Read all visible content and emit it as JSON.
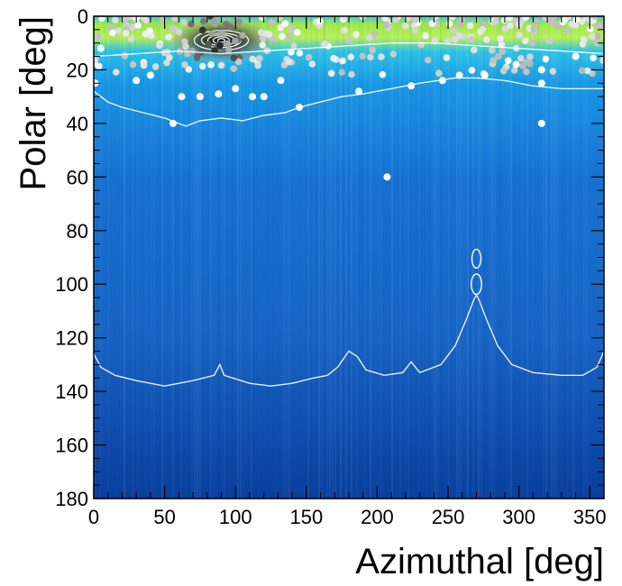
{
  "chart_data": {
    "type": "heatmap",
    "title": "",
    "xlabel": "Azimuthal [deg]",
    "ylabel": "Polar [deg]",
    "xlim": [
      0,
      360
    ],
    "ylim": [
      0,
      180
    ],
    "y_inverted": true,
    "x_ticks": [
      0,
      50,
      100,
      150,
      200,
      250,
      300,
      350
    ],
    "x_tick_labels": [
      "0",
      "50",
      "100",
      "150",
      "200",
      "250",
      "300",
      "350"
    ],
    "y_ticks": [
      0,
      20,
      40,
      60,
      80,
      100,
      120,
      140,
      160,
      180
    ],
    "y_tick_labels": [
      "0",
      "20",
      "40",
      "60",
      "80",
      "100",
      "120",
      "140",
      "160",
      "180"
    ],
    "grid": false,
    "legend": "none",
    "colormap": [
      {
        "polar": 0,
        "color": "#49c6d8"
      },
      {
        "polar": 3,
        "color": "#9fe84a"
      },
      {
        "polar": 8,
        "color": "#b8f05a"
      },
      {
        "polar": 13,
        "color": "#2fc4e6"
      },
      {
        "polar": 25,
        "color": "#1a98e6"
      },
      {
        "polar": 60,
        "color": "#1872d2"
      },
      {
        "polar": 120,
        "color": "#1764c4"
      },
      {
        "polar": 180,
        "color": "#0a3f9e"
      }
    ],
    "contour_color": "#ffffff",
    "contour_lines": [
      {
        "name": "upper",
        "points": [
          [
            0,
            15
          ],
          [
            30,
            14
          ],
          [
            60,
            13
          ],
          [
            90,
            14
          ],
          [
            120,
            13
          ],
          [
            150,
            12
          ],
          [
            180,
            11
          ],
          [
            210,
            10
          ],
          [
            240,
            10
          ],
          [
            270,
            11
          ],
          [
            300,
            12
          ],
          [
            330,
            13
          ],
          [
            360,
            14
          ]
        ]
      },
      {
        "name": "middle",
        "points": [
          [
            0,
            28
          ],
          [
            10,
            32
          ],
          [
            20,
            34
          ],
          [
            35,
            36
          ],
          [
            50,
            38
          ],
          [
            60,
            40
          ],
          [
            65,
            41
          ],
          [
            75,
            39
          ],
          [
            90,
            38
          ],
          [
            105,
            39
          ],
          [
            120,
            37
          ],
          [
            135,
            36
          ],
          [
            145,
            34
          ],
          [
            160,
            32
          ],
          [
            175,
            30
          ],
          [
            190,
            29
          ],
          [
            210,
            27
          ],
          [
            230,
            25
          ],
          [
            255,
            23
          ],
          [
            270,
            23
          ],
          [
            290,
            24
          ],
          [
            310,
            26
          ],
          [
            330,
            27
          ],
          [
            345,
            27
          ],
          [
            360,
            27
          ]
        ]
      },
      {
        "name": "lower",
        "points": [
          [
            0,
            126
          ],
          [
            5,
            131
          ],
          [
            15,
            134
          ],
          [
            30,
            136
          ],
          [
            50,
            138
          ],
          [
            70,
            136
          ],
          [
            85,
            134
          ],
          [
            89,
            130
          ],
          [
            92,
            134
          ],
          [
            110,
            137
          ],
          [
            125,
            138
          ],
          [
            140,
            137
          ],
          [
            155,
            135
          ],
          [
            165,
            134
          ],
          [
            172,
            131
          ],
          [
            180,
            125
          ],
          [
            186,
            127
          ],
          [
            192,
            132
          ],
          [
            205,
            134
          ],
          [
            218,
            133
          ],
          [
            224,
            129
          ],
          [
            230,
            133
          ],
          [
            245,
            130
          ],
          [
            255,
            123
          ],
          [
            263,
            113
          ],
          [
            268,
            106
          ],
          [
            270,
            104
          ],
          [
            272,
            106
          ],
          [
            277,
            113
          ],
          [
            285,
            123
          ],
          [
            295,
            130
          ],
          [
            310,
            133
          ],
          [
            330,
            134
          ],
          [
            345,
            134
          ],
          [
            355,
            131
          ],
          [
            360,
            125
          ]
        ]
      }
    ],
    "contour_ellipses": [
      {
        "cx": 270,
        "cy": 90.5,
        "rx": 3.2,
        "ry": 3.5
      },
      {
        "cx": 270,
        "cy": 100,
        "rx": 3.6,
        "ry": 3.8
      }
    ],
    "hotspot": {
      "x": 90,
      "y": 9,
      "color": "#1a1a1a"
    },
    "scatter_points_sparse": [
      {
        "x": 1,
        "y": 25
      },
      {
        "x": 56,
        "y": 40
      },
      {
        "x": 207,
        "y": 60
      },
      {
        "x": 316,
        "y": 40
      },
      {
        "x": 316,
        "y": 25
      },
      {
        "x": 187,
        "y": 28
      },
      {
        "x": 145,
        "y": 34
      },
      {
        "x": 75,
        "y": 30
      },
      {
        "x": 62,
        "y": 30
      },
      {
        "x": 112,
        "y": 30
      },
      {
        "x": 120,
        "y": 30
      },
      {
        "x": 88,
        "y": 29
      },
      {
        "x": 100,
        "y": 27
      },
      {
        "x": 30,
        "y": 24
      },
      {
        "x": 40,
        "y": 22
      },
      {
        "x": 132,
        "y": 24
      },
      {
        "x": 316,
        "y": 20
      },
      {
        "x": 258,
        "y": 22
      },
      {
        "x": 276,
        "y": 22
      },
      {
        "x": 224,
        "y": 26
      },
      {
        "x": 246,
        "y": 24
      },
      {
        "x": 340,
        "y": 15
      },
      {
        "x": 298,
        "y": 18
      },
      {
        "x": 5,
        "y": 12
      }
    ]
  }
}
